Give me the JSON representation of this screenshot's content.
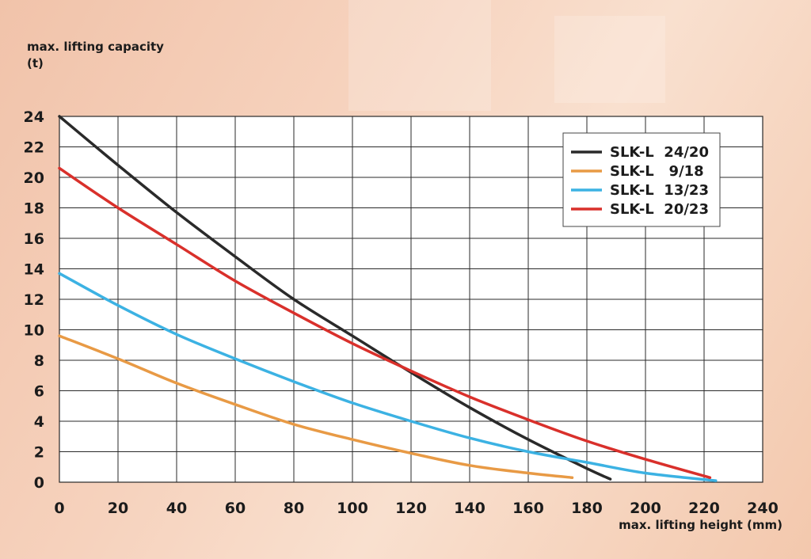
{
  "chart_data": {
    "type": "line",
    "ylabel_line1": "max. lifting capacity",
    "ylabel_line2": "(t)",
    "xlabel": "max. lifting height (mm)",
    "xlim": [
      0,
      240
    ],
    "ylim": [
      0,
      24
    ],
    "x_ticks": [
      0,
      20,
      40,
      60,
      80,
      100,
      120,
      140,
      160,
      180,
      200,
      220,
      240
    ],
    "y_ticks": [
      0,
      2,
      4,
      6,
      8,
      10,
      12,
      14,
      16,
      18,
      20,
      22,
      24
    ],
    "x_tick_labels": [
      "0",
      "20",
      "40",
      "60",
      "80",
      "100",
      "120",
      "140",
      "160",
      "180",
      "200",
      "220",
      "240"
    ],
    "y_tick_labels": [
      "0",
      "2",
      "4",
      "6",
      "8",
      "10",
      "12",
      "14",
      "16",
      "18",
      "20",
      "22",
      "24"
    ],
    "grid": true,
    "legend_position": "top-right",
    "series": [
      {
        "name": "SLK-L  24/20",
        "color": "#2a2a2a",
        "x": [
          0,
          20,
          40,
          60,
          80,
          100,
          120,
          140,
          160,
          180,
          188
        ],
        "y": [
          24,
          20.8,
          17.7,
          14.8,
          12,
          9.6,
          7.2,
          4.9,
          2.8,
          0.9,
          0.2
        ]
      },
      {
        "name": "SLK-L   9/18",
        "color": "#e89a45",
        "x": [
          0,
          20,
          40,
          60,
          80,
          100,
          120,
          140,
          160,
          175
        ],
        "y": [
          9.6,
          8.1,
          6.5,
          5.1,
          3.8,
          2.8,
          1.9,
          1.1,
          0.6,
          0.3
        ]
      },
      {
        "name": "SLK-L  13/23",
        "color": "#3cb2e3",
        "x": [
          0,
          20,
          40,
          60,
          80,
          100,
          120,
          140,
          160,
          180,
          200,
          224
        ],
        "y": [
          13.7,
          11.6,
          9.7,
          8.1,
          6.6,
          5.2,
          4.0,
          2.9,
          2.0,
          1.3,
          0.6,
          0.1
        ]
      },
      {
        "name": "SLK-L  20/23",
        "color": "#d9302b",
        "x": [
          0,
          20,
          40,
          60,
          80,
          100,
          120,
          140,
          160,
          180,
          200,
          222
        ],
        "y": [
          20.6,
          18.0,
          15.6,
          13.2,
          11.1,
          9.1,
          7.3,
          5.6,
          4.1,
          2.7,
          1.5,
          0.3
        ]
      }
    ]
  }
}
